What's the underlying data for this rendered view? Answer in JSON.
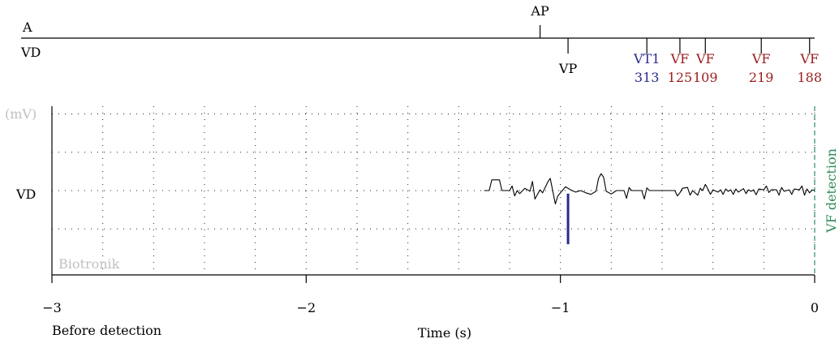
{
  "chart_data": {
    "type": "line",
    "colors": {
      "vt_marker": "#2a2a8c",
      "vf_marker": "#9b1c1c",
      "detection_line": "#2e8b57",
      "watermark": "#c0c0c0",
      "pacing_spike": "#2a2a8c"
    },
    "marker_channels": {
      "atrial_label": "A",
      "ventricular_label": "VD"
    },
    "atrial_markers": [
      {
        "label": "AP",
        "t": -1.08
      }
    ],
    "ventricular_markers": [
      {
        "label": "VP",
        "value": "",
        "t": -0.97,
        "class": "pace"
      },
      {
        "label": "VT1",
        "value": "313",
        "t": -0.66,
        "class": "vt"
      },
      {
        "label": "VF",
        "value": "125",
        "t": -0.53,
        "class": "vf"
      },
      {
        "label": "VF",
        "value": "109",
        "t": -0.43,
        "class": "vf"
      },
      {
        "label": "VF",
        "value": "219",
        "t": -0.21,
        "class": "vf"
      },
      {
        "label": "VF",
        "value": "188",
        "t": -0.02,
        "class": "vf"
      }
    ],
    "egm": {
      "channel_label": "VD",
      "unit_label": "(mV)",
      "manufacturer": "Biotronik",
      "detection_label": "VF detection",
      "detection_t": 0,
      "pacing_spike_t": -0.97,
      "start_t": -1.3,
      "ylim": [
        -2.2,
        2.2
      ],
      "gridlines_y": [
        -1,
        0,
        1,
        2
      ],
      "samples": [
        [
          -1.3,
          0
        ],
        [
          -1.28,
          0
        ],
        [
          -1.27,
          0.28
        ],
        [
          -1.24,
          0.28
        ],
        [
          -1.23,
          0
        ],
        [
          -1.2,
          0
        ],
        [
          -1.19,
          0.12
        ],
        [
          -1.18,
          -0.14
        ],
        [
          -1.17,
          0
        ],
        [
          -1.16,
          -0.08
        ],
        [
          -1.14,
          0.06
        ],
        [
          -1.12,
          -0.02
        ],
        [
          -1.11,
          0.24
        ],
        [
          -1.1,
          -0.22
        ],
        [
          -1.08,
          0.02
        ],
        [
          -1.07,
          -0.06
        ],
        [
          -1.05,
          0.22
        ],
        [
          -1.04,
          0.32
        ],
        [
          -1.02,
          -0.35
        ],
        [
          -1.01,
          -0.14
        ],
        [
          -0.99,
          0.02
        ],
        [
          -0.98,
          0.1
        ],
        [
          -0.96,
          0.02
        ],
        [
          -0.94,
          -0.04
        ],
        [
          -0.92,
          0
        ],
        [
          -0.9,
          -0.06
        ],
        [
          -0.88,
          -0.1
        ],
        [
          -0.86,
          -0.02
        ],
        [
          -0.85,
          0.32
        ],
        [
          -0.84,
          0.44
        ],
        [
          -0.83,
          0.35
        ],
        [
          -0.82,
          -0.02
        ],
        [
          -0.8,
          -0.09
        ],
        [
          -0.78,
          0
        ],
        [
          -0.75,
          0
        ],
        [
          -0.74,
          -0.2
        ],
        [
          -0.73,
          0.08
        ],
        [
          -0.72,
          0
        ],
        [
          -0.68,
          0
        ],
        [
          -0.67,
          -0.22
        ],
        [
          -0.66,
          0.07
        ],
        [
          -0.65,
          0
        ],
        [
          -0.55,
          0
        ],
        [
          -0.54,
          -0.14
        ],
        [
          -0.53,
          -0.06
        ],
        [
          -0.52,
          0.06
        ],
        [
          -0.5,
          0.08
        ],
        [
          -0.49,
          -0.12
        ],
        [
          -0.48,
          0
        ],
        [
          -0.46,
          -0.12
        ],
        [
          -0.45,
          0.06
        ],
        [
          -0.44,
          0
        ],
        [
          -0.43,
          0.16
        ],
        [
          -0.42,
          0.04
        ],
        [
          -0.41,
          -0.1
        ],
        [
          -0.4,
          0.02
        ],
        [
          -0.38,
          -0.04
        ],
        [
          -0.37,
          0.02
        ],
        [
          -0.36,
          -0.1
        ],
        [
          -0.35,
          0.04
        ],
        [
          -0.34,
          -0.02
        ],
        [
          -0.33,
          0.02
        ],
        [
          -0.32,
          -0.1
        ],
        [
          -0.31,
          0.04
        ],
        [
          -0.3,
          -0.04
        ],
        [
          -0.28,
          0.05
        ],
        [
          -0.27,
          -0.08
        ],
        [
          -0.26,
          0.02
        ],
        [
          -0.25,
          -0.02
        ],
        [
          -0.24,
          0.02
        ],
        [
          -0.23,
          -0.11
        ],
        [
          -0.22,
          0.04
        ],
        [
          -0.2,
          0.02
        ],
        [
          -0.19,
          0.12
        ],
        [
          -0.18,
          -0.05
        ],
        [
          -0.17,
          0.02
        ],
        [
          -0.15,
          0.02
        ],
        [
          -0.14,
          -0.12
        ],
        [
          -0.13,
          0.08
        ],
        [
          -0.12,
          -0.02
        ],
        [
          -0.1,
          0.02
        ],
        [
          -0.09,
          -0.1
        ],
        [
          -0.08,
          0.04
        ],
        [
          -0.06,
          0.02
        ],
        [
          -0.05,
          0.12
        ],
        [
          -0.04,
          -0.12
        ],
        [
          -0.03,
          0.04
        ],
        [
          -0.02,
          -0.06
        ],
        [
          -0.01,
          0.02
        ],
        [
          0,
          0
        ]
      ]
    },
    "x_axis": {
      "label": "Time (s)",
      "range": [
        -3,
        0
      ],
      "ticks": [
        -3,
        -2,
        -1,
        0
      ],
      "tick_labels": [
        "−3",
        "−2",
        "−1",
        "0"
      ],
      "minor_gridlines": [
        -2.8,
        -2.6,
        -2.4,
        -2.2,
        -1.8,
        -1.6,
        -1.4,
        -1.2,
        -0.8,
        -0.6,
        -0.4,
        -0.2
      ],
      "sublabel": "Before detection"
    }
  }
}
